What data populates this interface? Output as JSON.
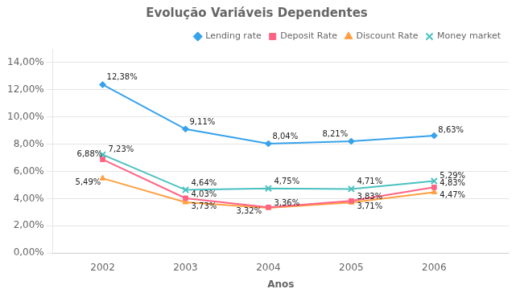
{
  "chart_data": {
    "type": "line",
    "title": "Evolução Variáveis Dependentes",
    "x_label": "Anos",
    "x": [
      2002,
      2003,
      2004,
      2005,
      2006
    ],
    "series": [
      {
        "name": "Lending rate",
        "marker": "diamond",
        "values": [
          0.1238,
          0.0911,
          0.0804,
          0.0821,
          0.0863
        ],
        "value_labels": [
          "12,38%",
          "9,11%",
          "8,04%",
          "8,21%",
          "8,63%"
        ]
      },
      {
        "name": "Deposit Rate",
        "marker": "square",
        "values": [
          0.0688,
          0.0403,
          0.0336,
          0.0383,
          0.0483
        ],
        "value_labels": [
          "6,88%",
          "4,03%",
          "3,36%",
          "3,83%",
          "4,83%"
        ]
      },
      {
        "name": "Discount Rate",
        "marker": "triangle",
        "values": [
          0.0549,
          0.0373,
          0.0332,
          0.0371,
          0.0447
        ],
        "value_labels": [
          "5,49%",
          "3,73%",
          "3,32%",
          "3,71%",
          "4,47%"
        ]
      },
      {
        "name": "Money market",
        "marker": "x",
        "values": [
          0.0723,
          0.0464,
          0.0475,
          0.0471,
          0.0529
        ],
        "value_labels": [
          "7,23%",
          "4,64%",
          "4,75%",
          "4,71%",
          "5,29%"
        ]
      }
    ],
    "xlim": [
      2001.4,
      2006.9
    ],
    "xticks": [
      2002,
      2003,
      2004,
      2005,
      2006
    ],
    "ylim": [
      0.0,
      0.15
    ],
    "yticks": [
      {
        "value": 0.0,
        "label": "0,00%"
      },
      {
        "value": 0.02,
        "label": "2,00%"
      },
      {
        "value": 0.04,
        "label": "4,00%"
      },
      {
        "value": 0.06,
        "label": "6,00%"
      },
      {
        "value": 0.08,
        "label": "8,00%"
      },
      {
        "value": 0.1,
        "label": "10,00%"
      },
      {
        "value": 0.12,
        "label": "12,00%"
      },
      {
        "value": 0.14,
        "label": "14,00%"
      }
    ],
    "grid": "y",
    "legend": "upper right",
    "data_labels": true
  }
}
